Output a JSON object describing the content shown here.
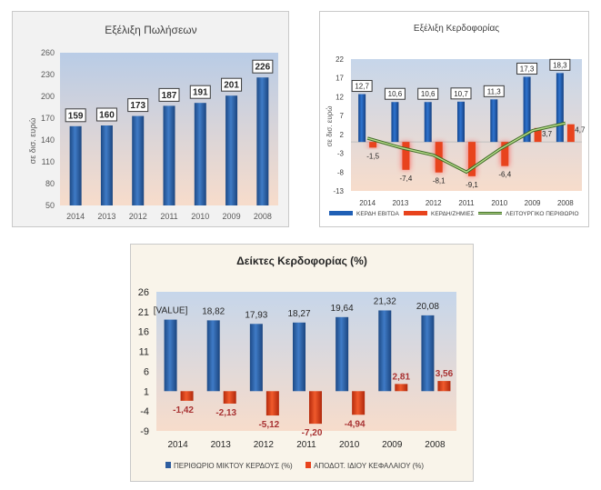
{
  "chart_data": [
    {
      "type": "bar",
      "title": "Εξέλιξη Πωλήσεων",
      "ylabel": "σε δισ. ευρώ",
      "xlabel": "",
      "categories": [
        "2014",
        "2013",
        "2012",
        "2011",
        "2010",
        "2009",
        "2008"
      ],
      "series": [
        {
          "values": [
            159,
            160,
            173,
            187,
            191,
            201,
            226
          ]
        }
      ],
      "data_labels": [
        "159",
        "160",
        "173",
        "187",
        "191",
        "201",
        "226"
      ],
      "ylim": [
        50,
        260
      ],
      "yticks": [
        50,
        80,
        110,
        140,
        170,
        200,
        230,
        260
      ],
      "grid": false,
      "colors": {
        "bar": "#2e5d9f",
        "background_top": "#b9cce6",
        "background_bottom": "#f7dccb"
      }
    },
    {
      "type": "bar",
      "title": "Εξέλιξη Κερδοφορίας",
      "ylabel": "σε δισ. ευρώ",
      "xlabel": "",
      "categories": [
        "2014",
        "2013",
        "2012",
        "2011",
        "2010",
        "2009",
        "2008"
      ],
      "series": [
        {
          "name": "ΚΕΡΔΗ EBITDA",
          "kind": "bar",
          "color": "#1f5fb5",
          "values": [
            12.7,
            10.6,
            10.6,
            10.7,
            11.3,
            17.3,
            18.3
          ],
          "labels": [
            "12,7",
            "10,6",
            "10,6",
            "10,7",
            "11,3",
            "17,3",
            "18,3"
          ]
        },
        {
          "name": "ΚΕΡΔΗ/ΖΗΜΙΕΣ",
          "kind": "bar",
          "color": "#e8431d",
          "values": [
            -1.5,
            -7.4,
            -8.1,
            -9.1,
            -6.4,
            3.7,
            4.7
          ],
          "labels": [
            "-1,5",
            "-7,4",
            "-8,1",
            "-9,1",
            "-6,4",
            "3,7",
            "4,7"
          ]
        },
        {
          "name": "ΛΕΙΤΟΥΡΓΙΚΟ ΠΕΡΙΘΩΡΙΟ",
          "kind": "line",
          "color": "#5a9a3a",
          "values": [
            1.0,
            -1.5,
            -3.5,
            -8.0,
            -2.0,
            3.0,
            5.0
          ]
        }
      ],
      "ylim": [
        -13,
        22
      ],
      "yticks": [
        -13,
        -8,
        -3,
        2,
        7,
        12,
        17,
        22
      ],
      "legend": "bottom",
      "colors": {
        "background_top": "#c6d6ea",
        "background_bottom": "#f7dccb"
      }
    },
    {
      "type": "bar",
      "title": "Δείκτες Κερδοφορίας (%)",
      "xlabel": "",
      "ylabel": "",
      "categories": [
        "2014",
        "2013",
        "2012",
        "2011",
        "2010",
        "2009",
        "2008"
      ],
      "series": [
        {
          "name": "ΠΕΡΙΘΩΡΙΟ ΜΙΚΤΟΥ ΚΕΡΔΟΥΣ (%)",
          "color": "#2e5d9f",
          "values": [
            19.0,
            18.82,
            17.93,
            18.27,
            19.64,
            21.32,
            20.08
          ],
          "labels": [
            "[VALUE]",
            "18,82",
            "17,93",
            "18,27",
            "19,64",
            "21,32",
            "20,08"
          ]
        },
        {
          "name": "ΑΠΟΔΟΤ. ΙΔΙΟΥ ΚΕΦΑΛΑΙΟΥ (%)",
          "color": "#e8431d",
          "values": [
            -1.42,
            -2.13,
            -5.12,
            -7.2,
            -4.94,
            2.81,
            3.56
          ],
          "labels": [
            "-1,42",
            "-2,13",
            "-5,12",
            "-7,20",
            "-4,94",
            "2,81",
            "3,56"
          ]
        }
      ],
      "ylim": [
        -9,
        26
      ],
      "yticks": [
        -9,
        -4,
        1,
        6,
        11,
        16,
        21,
        26
      ],
      "baseline": 1,
      "legend": "bottom",
      "colors": {
        "background_top": "#c6d6ea",
        "background_bottom": "#f7dccb",
        "label_negative": "#a83232"
      }
    }
  ]
}
